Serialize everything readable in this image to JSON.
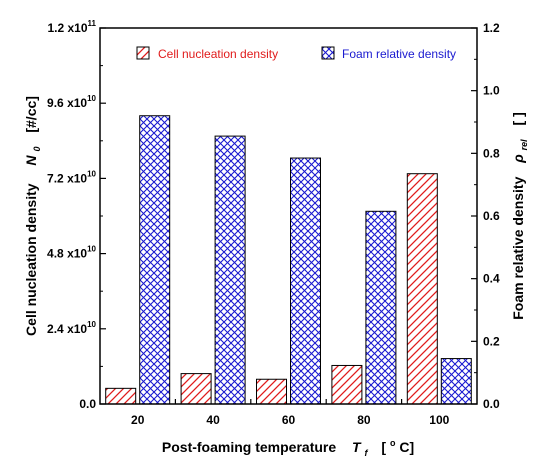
{
  "chart_data": {
    "type": "bar",
    "categories": [
      "20",
      "40",
      "60",
      "80",
      "100"
    ],
    "series": [
      {
        "name": "Cell nucleation density",
        "axis": "left",
        "values": [
          5000000000,
          9700000000,
          7900000000,
          12300000000,
          73500000000
        ],
        "color": "#e01b1b",
        "pattern": "diagonal-hatch"
      },
      {
        "name": "Foam relative density",
        "axis": "right",
        "values": [
          0.92,
          0.855,
          0.785,
          0.615,
          0.145
        ],
        "color": "#1a1ad0",
        "pattern": "cross-hatch"
      }
    ],
    "left_axis": {
      "ylim": [
        0,
        120000000000
      ],
      "ticks": [
        {
          "mant": "0.0",
          "exp": ""
        },
        {
          "mant": "2.4 x10",
          "exp": "10"
        },
        {
          "mant": "4.8 x10",
          "exp": "10"
        },
        {
          "mant": "7.2 x10",
          "exp": "10"
        },
        {
          "mant": "9.6 x10",
          "exp": "10"
        },
        {
          "mant": "1.2 x10",
          "exp": "11"
        }
      ],
      "label": "Cell nucleation density",
      "symbol": "N",
      "symbol_sub": "0",
      "unit": "[#/cc]"
    },
    "right_axis": {
      "ylim": [
        0,
        1.2
      ],
      "ticks": [
        "0.0",
        "0.2",
        "0.4",
        "0.6",
        "0.8",
        "1.0",
        "1.2"
      ],
      "label": "Foam relative density",
      "symbol": "ρ",
      "symbol_sub": "rel",
      "unit": "[   ]"
    },
    "x_axis": {
      "label": "Post-foaming temperature",
      "symbol": "T",
      "symbol_sub": "f",
      "unit_open": "[",
      "unit_deg": "o",
      "unit_close": "C]"
    },
    "legend_position": "top",
    "grid": false
  }
}
